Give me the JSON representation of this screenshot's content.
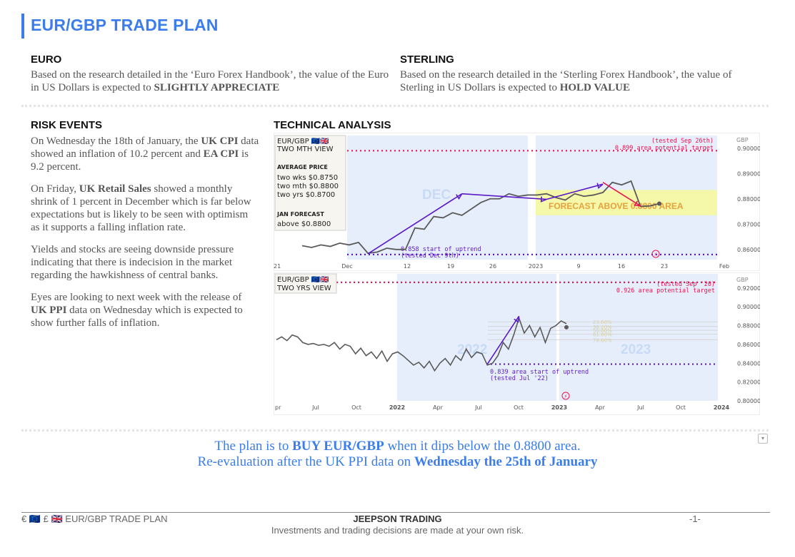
{
  "title": "EUR/GBP TRADE PLAN",
  "euro": {
    "heading": "EURO",
    "text_1": "Based on the research detailed in the ‘Euro Forex Handbook’, the value of the Euro in US Dollars is expected to ",
    "text_bold": "SLIGHTLY APPRECIATE"
  },
  "sterling": {
    "heading": "STERLING",
    "text_1": "Based on the research detailed in the ‘Sterling Forex Handbook’, the value of Sterling in US Dollars is expected to ",
    "text_bold": "HOLD VALUE"
  },
  "risk": {
    "heading": "RISK EVENTS",
    "p1": [
      "On Wednesday the 18th of January, the ",
      "UK CPI",
      " data showed an inflation of 10.2 percent and ",
      "EA CPI",
      " is 9.2 percent."
    ],
    "p2": [
      "On Friday, ",
      "UK Retail Sales",
      " showed a monthly shrink of 1 percent in December which is far below expectations but is likely to be seen with optimism as it supports a falling inflation rate."
    ],
    "p3": "Yields and stocks are seeing downside pressure indicating that there is indecision in the market regarding the hawkishness of central banks.",
    "p4": [
      "Eyes are looking to next week with the release of ",
      "UK PPI",
      " data on Wednesday which is expected to show further falls of inflation."
    ]
  },
  "technical": {
    "heading": "TECHNICAL ANALYSIS"
  },
  "chart_data": [
    {
      "type": "line",
      "panel": "top",
      "label_1": "EUR/GBP 🇪🇺🇬🇧",
      "label_2": "TWO MTH VIEW",
      "avg_title": "AVERAGE PRICE",
      "avg_lines": [
        "two wks $0.8750",
        "two mth $0.8800",
        "two yrs $0.8700"
      ],
      "forecast_title": "JAN FORECAST",
      "forecast_value": "above $0.8800",
      "month_label": "DEC",
      "forecast_box": "FORECAST ABOVE 0.8800 AREA",
      "target_note_1": "(tested Sep 26th)",
      "target_note_2": "0.899 area potential target",
      "support_note_1": "0.858 start of uptrend",
      "support_note_2": "(tested Dec 9th)",
      "currency": "GBP",
      "x_ticks": [
        "21",
        "Dec",
        "12",
        "19",
        "26",
        "2023",
        "9",
        "16",
        "23",
        "Feb"
      ],
      "y_ticks": [
        "0.90000",
        "0.89000",
        "0.88000",
        "0.87000",
        "0.86000"
      ],
      "ylim": [
        0.856,
        0.905
      ],
      "target": 0.899,
      "support": 0.858,
      "forecast_level": 0.88,
      "x": [
        0,
        1,
        2,
        3,
        4,
        5,
        6,
        7,
        8,
        9,
        10,
        11,
        12,
        13,
        14,
        15,
        16,
        17,
        18,
        19,
        20,
        21,
        22,
        23,
        24,
        25,
        26,
        27,
        28,
        29,
        30,
        31,
        32,
        33,
        34,
        35,
        36,
        37,
        38
      ],
      "values": [
        0.8615,
        0.8608,
        0.8618,
        0.8612,
        0.8625,
        0.8618,
        0.8628,
        0.8585,
        0.859,
        0.8605,
        0.86,
        0.86,
        0.8685,
        0.868,
        0.873,
        0.8725,
        0.8745,
        0.8735,
        0.876,
        0.8785,
        0.88,
        0.88,
        0.882,
        0.881,
        0.8815,
        0.8815,
        0.882,
        0.8805,
        0.8795,
        0.882,
        0.881,
        0.8815,
        0.8825,
        0.8865,
        0.8855,
        0.887,
        0.877,
        0.8772,
        0.8781
      ],
      "trend_arrows": [
        {
          "from": [
            7,
            0.8583
          ],
          "to": [
            17,
            0.882
          ]
        },
        {
          "from": [
            17,
            0.882
          ],
          "to": [
            26,
            0.8798
          ]
        },
        {
          "from": [
            26,
            0.8798
          ],
          "to": [
            32,
            0.8858
          ]
        }
      ],
      "down_arrow": {
        "from": [
          32,
          0.8865
        ],
        "to": [
          36,
          0.8772
        ]
      }
    },
    {
      "type": "line",
      "panel": "bottom",
      "label_1": "EUR/GBP 🇪🇺🇬🇧",
      "label_2": "TWO YRS VIEW",
      "year_label_1": "2022",
      "year_label_2": "2023",
      "target_note_1": "(tested Sep '20)",
      "target_note_2": "0.926 area potential target",
      "support_note_1": "0.839 area start of uptrend",
      "support_note_2": "(tested Jul '22)",
      "fib_levels": [
        "23.60%",
        "38.20%",
        "50.00%",
        "61.80%",
        "78.60%"
      ],
      "currency": "GBP",
      "x_ticks": [
        "pr",
        "Jul",
        "Oct",
        "2022",
        "Apr",
        "Jul",
        "Oct",
        "2023",
        "Apr",
        "Jul",
        "Oct",
        "2024"
      ],
      "y_ticks": [
        "0.92000",
        "0.90000",
        "0.88000",
        "0.86000",
        "0.84000",
        "0.82000",
        "0.80000"
      ],
      "ylim": [
        0.8,
        0.935
      ],
      "target": 0.926,
      "support": 0.839,
      "values": [
        0.865,
        0.868,
        0.864,
        0.87,
        0.868,
        0.862,
        0.86,
        0.861,
        0.859,
        0.86,
        0.858,
        0.862,
        0.855,
        0.86,
        0.858,
        0.85,
        0.856,
        0.848,
        0.852,
        0.845,
        0.853,
        0.842,
        0.85,
        0.852,
        0.848,
        0.843,
        0.838,
        0.841,
        0.835,
        0.842,
        0.832,
        0.84,
        0.845,
        0.838,
        0.848,
        0.843,
        0.855,
        0.846,
        0.852,
        0.85,
        0.838,
        0.84,
        0.848,
        0.862,
        0.855,
        0.87,
        0.888,
        0.872,
        0.88,
        0.868,
        0.878,
        0.862,
        0.877,
        0.88,
        0.885,
        0.882
      ],
      "trend_arrow": {
        "from": [
          40,
          0.839
        ],
        "to": [
          46,
          0.89
        ]
      }
    }
  ],
  "plan": {
    "l1_a": "The plan is to ",
    "l1_b": "BUY EUR/GBP",
    "l1_c": " when it dips below the 0.8800 area.",
    "l2_a": "Re-evaluation after the UK PPI data on ",
    "l2_b": "Wednesday the 25th of January"
  },
  "footer": {
    "left": "€ 🇪🇺  £ 🇬🇧 EUR/GBP TRADE PLAN",
    "center": "JEEPSON TRADING",
    "page": "-1-",
    "disclaimer": "Investments and trading decisions are made at your own risk."
  },
  "colors": {
    "accent": "#3b7ded",
    "target_line": "#e8154f",
    "support_line": "#5b1ac9",
    "price": "#5a5a5a",
    "band": "#e6eefc",
    "forecast_zone": "#f6f7a0"
  }
}
